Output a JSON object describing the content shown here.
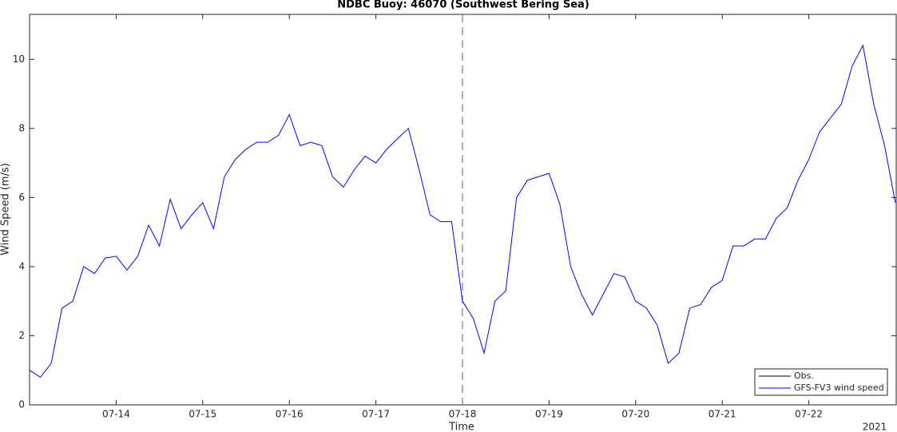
{
  "chart_data": {
    "type": "line",
    "title": "NDBC Buoy: 46070 (Southwest Bering Sea)",
    "x_label": "Time",
    "y_label": "Wind Speed (m/s)",
    "year_label": "2021",
    "categories": [
      null,
      null,
      null,
      null,
      null,
      null,
      null,
      null,
      "07-14",
      null,
      null,
      null,
      null,
      null,
      null,
      null,
      "07-15",
      null,
      null,
      null,
      null,
      null,
      null,
      null,
      "07-16",
      null,
      null,
      null,
      null,
      null,
      null,
      null,
      "07-17",
      null,
      null,
      null,
      null,
      null,
      null,
      null,
      "07-18",
      null,
      null,
      null,
      null,
      null,
      null,
      null,
      "07-19",
      null,
      null,
      null,
      null,
      null,
      null,
      null,
      "07-20",
      null,
      null,
      null,
      null,
      null,
      null,
      null,
      "07-21",
      null,
      null,
      null,
      null,
      null,
      null,
      null,
      "07-22",
      null,
      null,
      null,
      null,
      null,
      null,
      null,
      null
    ],
    "vline": "07-18",
    "series": [
      {
        "name": "Obs.",
        "color": "#000000",
        "values": [
          null,
          null,
          null,
          null,
          null,
          null,
          null,
          null,
          null,
          null,
          null,
          null,
          null,
          null,
          null,
          null,
          null,
          null,
          null,
          null,
          null,
          null,
          null,
          null,
          null,
          null,
          null,
          null,
          null,
          null,
          null,
          null,
          null,
          null,
          null,
          null,
          null,
          null,
          null,
          null,
          null,
          null,
          null,
          null,
          null,
          null,
          null,
          null,
          null,
          null,
          null,
          null,
          null,
          null,
          null,
          null,
          null,
          null,
          null,
          null,
          null,
          null,
          null,
          null,
          null,
          null,
          null,
          null,
          null,
          null,
          null,
          null,
          null,
          null,
          null,
          null,
          null,
          null,
          null,
          null,
          null
        ]
      },
      {
        "name": "GFS-FV3 wind speed",
        "color": "#0000ff",
        "values": [
          1.0,
          0.8,
          1.2,
          2.8,
          3.0,
          4.0,
          3.8,
          4.25,
          4.3,
          3.9,
          4.3,
          5.2,
          4.6,
          5.95,
          5.1,
          5.5,
          5.85,
          5.1,
          6.6,
          7.1,
          7.4,
          7.6,
          7.6,
          7.8,
          8.4,
          7.5,
          7.6,
          7.5,
          6.6,
          6.3,
          6.8,
          7.2,
          7.0,
          7.4,
          7.7,
          8.0,
          6.8,
          5.5,
          5.3,
          5.3,
          3.0,
          2.5,
          1.5,
          3.0,
          3.3,
          6.0,
          6.5,
          6.6,
          6.7,
          5.8,
          4.0,
          3.2,
          2.6,
          3.2,
          3.8,
          3.7,
          3.0,
          2.8,
          2.3,
          1.2,
          1.5,
          2.8,
          2.9,
          3.4,
          3.6,
          4.6,
          4.6,
          4.8,
          4.8,
          5.4,
          5.7,
          6.5,
          7.1,
          7.9,
          8.3,
          8.7,
          9.8,
          10.4,
          8.7,
          7.5,
          5.85
        ]
      }
    ],
    "ylim": [
      0,
      11.3
    ],
    "yticks": [
      0,
      2,
      4,
      6,
      8,
      10
    ],
    "legend": "lower right"
  }
}
